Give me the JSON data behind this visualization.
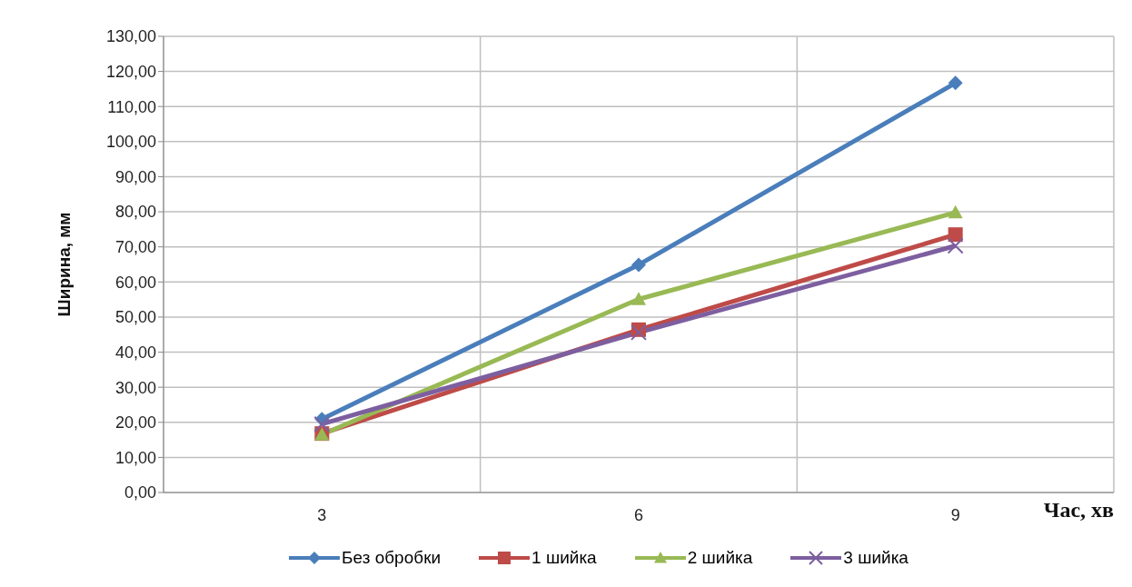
{
  "chart_data": {
    "type": "line",
    "xlabel": "Час, хв",
    "ylabel": "Ширина, мм",
    "categories": [
      "3",
      "6",
      "9"
    ],
    "series": [
      {
        "name": "Без обробки",
        "color": "#4a7ebb",
        "marker": "diamond",
        "values": [
          20.9,
          64.9,
          116.7
        ]
      },
      {
        "name": "1 шийка",
        "color": "#be4b48",
        "marker": "square",
        "values": [
          16.8,
          46.4,
          73.5
        ]
      },
      {
        "name": "2 шийка",
        "color": "#98b954",
        "marker": "triangle",
        "values": [
          16.5,
          55.1,
          79.8
        ]
      },
      {
        "name": "3 шийка",
        "color": "#7d5fa0",
        "marker": "cross",
        "values": [
          19.5,
          45.6,
          70.3
        ]
      }
    ],
    "ylim": [
      0,
      130
    ],
    "yticks": [
      {
        "value": 0,
        "label": "0,00"
      },
      {
        "value": 10,
        "label": "10,00"
      },
      {
        "value": 20,
        "label": "20,00"
      },
      {
        "value": 30,
        "label": "30,00"
      },
      {
        "value": 40,
        "label": "40,00"
      },
      {
        "value": 50,
        "label": "50,00"
      },
      {
        "value": 60,
        "label": "60,00"
      },
      {
        "value": 70,
        "label": "70,00"
      },
      {
        "value": 80,
        "label": "80,00"
      },
      {
        "value": 90,
        "label": "90,00"
      },
      {
        "value": 100,
        "label": "100,00"
      },
      {
        "value": 110,
        "label": "110,00"
      },
      {
        "value": 120,
        "label": "120,00"
      },
      {
        "value": 130,
        "label": "130,00"
      }
    ],
    "grid": true,
    "legend": "bottom"
  }
}
